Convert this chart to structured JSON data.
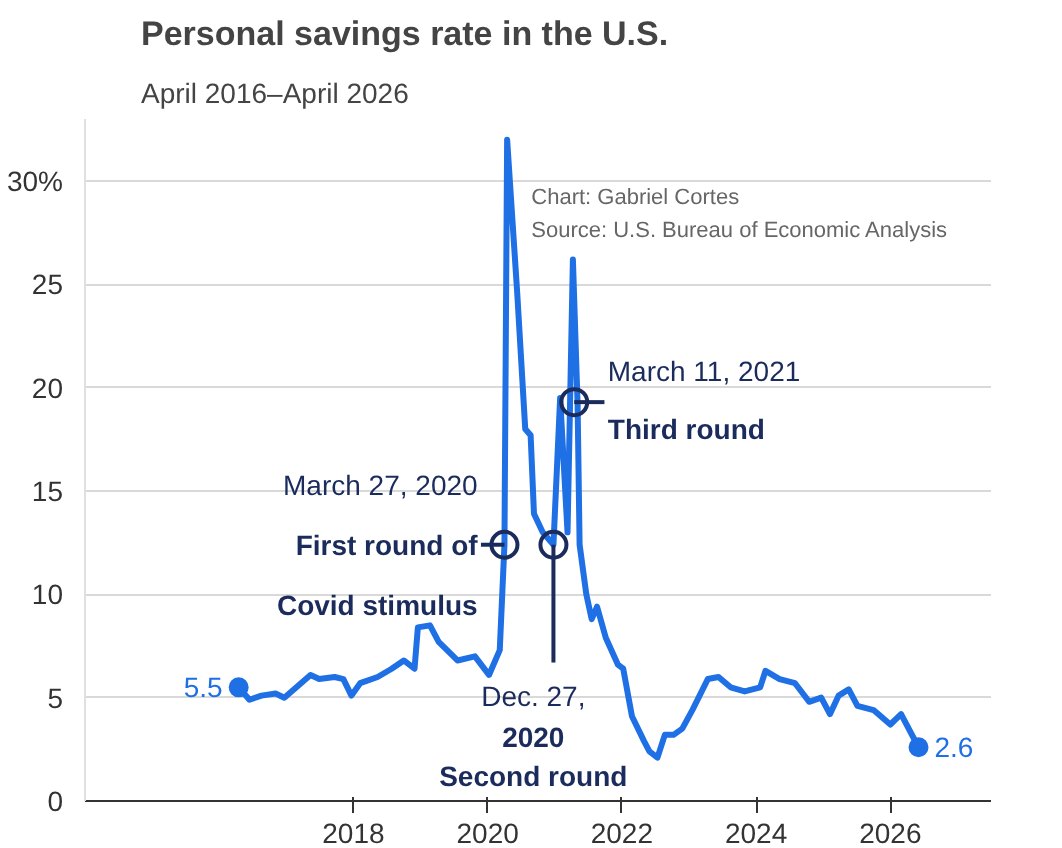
{
  "chart_data": {
    "type": "line",
    "title": "Personal savings rate in the U.S.",
    "subtitle": "April 2016–April 2026",
    "x": [
      2016.29,
      2016.45,
      2016.63,
      2016.84,
      2016.97,
      2017.15,
      2017.36,
      2017.49,
      2017.72,
      2017.85,
      2017.97,
      2018.1,
      2018.36,
      2018.57,
      2018.75,
      2018.91,
      2018.96,
      2019.14,
      2019.27,
      2019.55,
      2019.81,
      2020.02,
      2020.18,
      2020.25,
      2020.29,
      2020.44,
      2020.56,
      2020.64,
      2020.69,
      2020.82,
      2020.98,
      2021.08,
      2021.19,
      2021.27,
      2021.34,
      2021.37,
      2021.47,
      2021.55,
      2021.63,
      2021.76,
      2021.94,
      2022.02,
      2022.15,
      2022.33,
      2022.41,
      2022.53,
      2022.64,
      2022.77,
      2022.9,
      2023.05,
      2023.28,
      2023.44,
      2023.62,
      2023.83,
      2024.06,
      2024.14,
      2024.35,
      2024.58,
      2024.79,
      2024.97,
      2025.1,
      2025.23,
      2025.38,
      2025.51,
      2025.75,
      2026.0,
      2026.16,
      2026.42
    ],
    "series": [
      {
        "color": "#1f6fe5",
        "values": [
          5.5,
          4.9,
          5.1,
          5.2,
          5.0,
          5.5,
          6.1,
          5.9,
          6.0,
          5.9,
          5.1,
          5.7,
          6.0,
          6.4,
          6.8,
          6.4,
          8.4,
          8.5,
          7.7,
          6.8,
          7.0,
          6.1,
          7.3,
          12.4,
          32.0,
          24.6,
          18.0,
          17.7,
          13.9,
          13.0,
          12.4,
          19.5,
          13.0,
          26.2,
          19.2,
          12.4,
          10.0,
          8.8,
          9.4,
          7.9,
          6.6,
          6.4,
          4.1,
          2.9,
          2.4,
          2.1,
          3.2,
          3.2,
          3.5,
          4.4,
          5.9,
          6.0,
          5.5,
          5.3,
          5.5,
          6.3,
          5.9,
          5.7,
          4.8,
          5.0,
          4.2,
          5.1,
          5.4,
          4.6,
          4.4,
          3.7,
          4.2,
          2.6
        ],
        "value_labels": [
          "5.5",
          null,
          null,
          null,
          null,
          null,
          null,
          null,
          null,
          null,
          null,
          null,
          null,
          null,
          null,
          null,
          null,
          null,
          null,
          null,
          null,
          null,
          null,
          null,
          null,
          null,
          null,
          null,
          null,
          null,
          null,
          null,
          null,
          null,
          null,
          null,
          null,
          null,
          null,
          null,
          null,
          null,
          null,
          null,
          null,
          null,
          null,
          null,
          null,
          null,
          null,
          null,
          null,
          null,
          null,
          null,
          null,
          null,
          null,
          null,
          null,
          null,
          null,
          null,
          null,
          null,
          null,
          "2.6"
        ]
      }
    ],
    "xlim": [
      2014,
      2027.5
    ],
    "xticks": [
      2018,
      2020,
      2022,
      2024,
      2026
    ],
    "ylim": [
      0,
      33
    ],
    "yticks": [
      0,
      5,
      10,
      15,
      20,
      25,
      {
        "value": 30,
        "label": "30%"
      }
    ],
    "grid": "y",
    "marker": "none",
    "line_style": "solid",
    "annotations": [
      {
        "text": "March 27, 2020\nFirst round of\nCovid stimulus",
        "x": 2020.25,
        "y": 12.4
      },
      {
        "text": "Dec. 27,\n2020\nSecond round",
        "x": 2020.98,
        "y": 12.4
      },
      {
        "text": "March 11, 2021\nThird round",
        "x": 2021.29,
        "y": 19.3
      },
      "Chart: Gabriel Cortes",
      "Source: U.S. Bureau of Economic Analysis"
    ]
  }
}
